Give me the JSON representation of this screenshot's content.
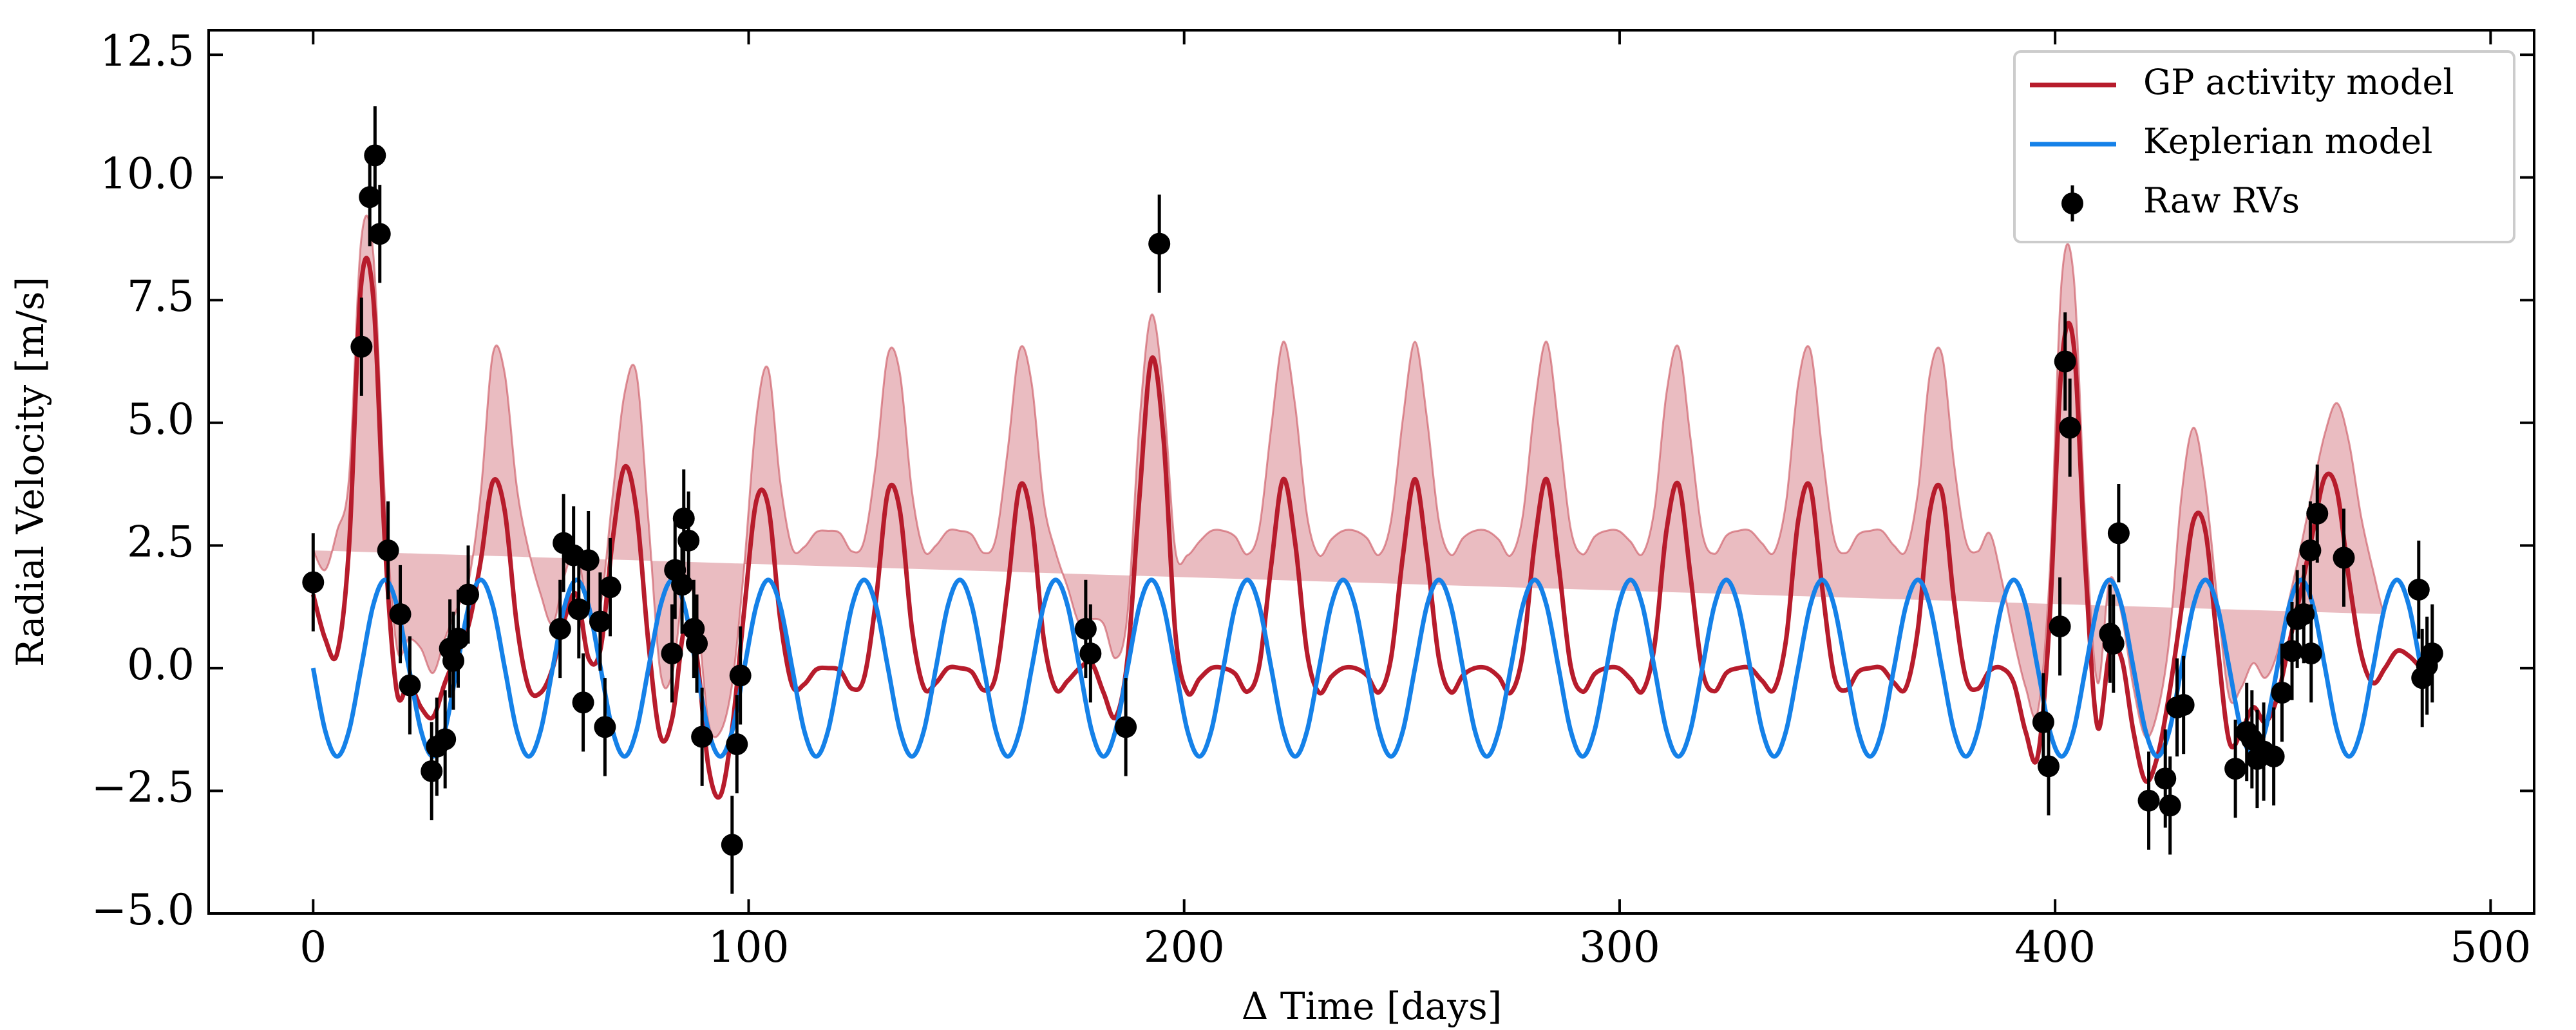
{
  "chart_data": {
    "type": "line",
    "xlabel": "Δ Time [days]",
    "ylabel": "Radial Velocity [m/s]",
    "xlim": [
      -24,
      510
    ],
    "ylim": [
      -5,
      13
    ],
    "xticks": [
      0,
      100,
      200,
      300,
      400,
      500
    ],
    "yticks": [
      {
        "value": -5,
        "label": "−5.0"
      },
      {
        "value": -2.5,
        "label": "−2.5"
      },
      {
        "value": 0,
        "label": "0.0"
      },
      2.5,
      {
        "value": 5,
        "label": "5.0"
      },
      7.5,
      {
        "value": 10,
        "label": "10.0"
      },
      12.5
    ],
    "legend": "upper right",
    "x": [
      0,
      2.75,
      5.5,
      8.25,
      11,
      13.75,
      16.5,
      19.25,
      22,
      24.75,
      27.5,
      30.25,
      33,
      35.75,
      38.5,
      41.25,
      44,
      46.75,
      49.5,
      52.25,
      55,
      57.75,
      60.5,
      63.25,
      66,
      68.75,
      71.5,
      74.25,
      77,
      79.75,
      82.5,
      85.25,
      88,
      90.75,
      93.5,
      96.25,
      99,
      101.75,
      104.5,
      107.25,
      110,
      112.75,
      115.5,
      118.25,
      121,
      123.75,
      126.5,
      129.25,
      132,
      134.75,
      137.5,
      140.25,
      143,
      145.75,
      148.5,
      151.25,
      154,
      156.75,
      159.5,
      162.25,
      165,
      167.75,
      170.5,
      173.25,
      176,
      178.75,
      181.5,
      184.25,
      187,
      189.75,
      192.5,
      195.25,
      198,
      200.75,
      203.5,
      206.25,
      209,
      211.75,
      214.5,
      217.25,
      220,
      222.75,
      225.5,
      228.25,
      231,
      233.75,
      236.5,
      239.25,
      242,
      244.75,
      247.5,
      250.25,
      253,
      255.75,
      258.5,
      261.25,
      264,
      266.75,
      269.5,
      272.25,
      275,
      277.75,
      280.5,
      283.25,
      286,
      288.75,
      291.5,
      294.25,
      297,
      299.75,
      302.5,
      305.25,
      308,
      310.75,
      313.5,
      316.25,
      319,
      321.75,
      324.5,
      327.25,
      330,
      332.75,
      335.5,
      338.25,
      341,
      343.75,
      346.5,
      349.25,
      352,
      354.75,
      357.5,
      360.25,
      363,
      365.75,
      368.5,
      371.25,
      374,
      376.75,
      379.5,
      382.25,
      385,
      387.75,
      390.5,
      393.25,
      396,
      398.75,
      401.5,
      404.25,
      407,
      409.75,
      412.5,
      415.25,
      418,
      420.75,
      423.5,
      426.25,
      429,
      431.75,
      434.5,
      437.25,
      440,
      442.75,
      445.5,
      448.25,
      451,
      453.75,
      456.5,
      459.25,
      462,
      464.75,
      467.5,
      470.25,
      473,
      475.75,
      478.5,
      481.25,
      484
    ],
    "series": [
      {
        "name": "GP activity model",
        "type": "line",
        "color": "#b71c2c",
        "band_color": "#c9505c",
        "values": [
          1.5,
          0.6,
          0.3,
          2.5,
          7.8,
          7.6,
          2.5,
          -0.5,
          -0.3,
          -0.8,
          -1.0,
          -0.3,
          0.3,
          0.9,
          2.2,
          3.8,
          3.2,
          0.9,
          -0.4,
          -0.5,
          0.0,
          1.0,
          1.5,
          0.2,
          0.4,
          2.6,
          4.1,
          3.2,
          0.5,
          -1.4,
          -1.0,
          0.8,
          0.3,
          -2.0,
          -2.6,
          -1.2,
          1.2,
          3.4,
          3.3,
          1.0,
          -0.35,
          -0.33,
          -0.03,
          0.0,
          -0.05,
          -0.42,
          -0.2,
          1.4,
          3.6,
          3.2,
          0.8,
          -0.4,
          -0.3,
          0.0,
          0.0,
          -0.08,
          -0.45,
          -0.15,
          1.65,
          3.7,
          3.0,
          0.6,
          -0.43,
          -0.26,
          0.0,
          0.1,
          -0.5,
          -1.0,
          0.2,
          3.5,
          6.3,
          4.7,
          0.7,
          -0.5,
          -0.22,
          0.0,
          0.0,
          -0.12,
          -0.48,
          0.05,
          2.1,
          3.85,
          2.55,
          0.3,
          -0.5,
          -0.18,
          0.0,
          0.0,
          -0.15,
          -0.49,
          0.2,
          2.3,
          3.85,
          2.3,
          0.2,
          -0.49,
          -0.15,
          0.0,
          0.0,
          -0.18,
          -0.5,
          0.3,
          2.55,
          3.85,
          2.1,
          0.05,
          -0.48,
          -0.12,
          0.0,
          0.0,
          -0.22,
          -0.47,
          0.45,
          2.8,
          3.75,
          1.9,
          -0.05,
          -0.47,
          -0.1,
          0.0,
          0.0,
          -0.26,
          -0.43,
          0.6,
          3.0,
          3.7,
          1.65,
          -0.15,
          -0.45,
          -0.08,
          0.0,
          0.0,
          -0.3,
          -0.4,
          0.8,
          3.2,
          3.6,
          1.4,
          -0.2,
          -0.42,
          -0.05,
          0.0,
          -0.3,
          -1.3,
          -1.8,
          1.0,
          6.2,
          6.6,
          2.0,
          -1.2,
          0.3,
          0.2,
          -1.3,
          -2.3,
          -1.8,
          -0.5,
          1.2,
          3.0,
          2.8,
          0.5,
          -1.5,
          -1.3,
          -0.8,
          -1.1,
          -0.6,
          0.5,
          1.6,
          2.8,
          3.9,
          3.6,
          1.8,
          0.3,
          -0.3,
          0.0,
          0.35,
          0.25,
          0.0
        ],
        "band": [
          0.9,
          1.4,
          2.5,
          1.4,
          0.9,
          0.9,
          0.9,
          0.9,
          0.9,
          1.2,
          0.9,
          0.9,
          0.9,
          0.9,
          1.4,
          2.6,
          2.8,
          2.8,
          2.8,
          2.0,
          0.9,
          0.9,
          0.9,
          0.9,
          0.9,
          0.9,
          1.5,
          2.8,
          2.5,
          1.3,
          0.9,
          0.9,
          0.9,
          0.9,
          1.3,
          0.9,
          0.9,
          1.7,
          2.8,
          2.8,
          2.8,
          2.8,
          2.8,
          2.8,
          2.8,
          2.8,
          2.8,
          2.8,
          2.8,
          2.8,
          2.8,
          2.8,
          2.8,
          2.8,
          2.8,
          2.8,
          2.8,
          2.8,
          2.8,
          2.8,
          2.8,
          2.8,
          2.8,
          1.9,
          0.9,
          0.9,
          1.4,
          1.2,
          0.9,
          1.5,
          0.9,
          0.9,
          1.7,
          2.8,
          2.8,
          2.8,
          2.8,
          2.8,
          2.8,
          2.8,
          2.8,
          2.8,
          2.8,
          2.8,
          2.8,
          2.8,
          2.8,
          2.8,
          2.8,
          2.8,
          2.8,
          2.8,
          2.8,
          2.8,
          2.8,
          2.8,
          2.8,
          2.8,
          2.8,
          2.8,
          2.8,
          2.8,
          2.8,
          2.8,
          2.8,
          2.8,
          2.8,
          2.8,
          2.8,
          2.8,
          2.8,
          2.8,
          2.8,
          2.8,
          2.8,
          2.8,
          2.8,
          2.8,
          2.8,
          2.8,
          2.8,
          2.8,
          2.8,
          2.8,
          2.8,
          2.8,
          2.8,
          2.8,
          2.8,
          2.8,
          2.8,
          2.8,
          2.8,
          2.8,
          2.8,
          2.8,
          2.8,
          2.8,
          2.8,
          2.8,
          2.8,
          1.8,
          0.9,
          0.9,
          0.9,
          0.9,
          1.7,
          1.4,
          0.9,
          0.9,
          1.5,
          0.9,
          0.9,
          0.9,
          0.9,
          1.1,
          2.3,
          1.9,
          0.9,
          0.9,
          0.9,
          0.9,
          0.9,
          0.9,
          0.9,
          0.9,
          0.9,
          0.9,
          0.9,
          1.8,
          2.8,
          2.8,
          2.3,
          1.1,
          0.9
        ]
      },
      {
        "name": "Keplerian model",
        "type": "line",
        "color": "#1581e8",
        "values": [
          0,
          -1.27,
          -1.8,
          -1.27,
          0,
          1.27,
          1.8,
          1.27,
          0,
          -1.27,
          -1.8,
          -1.27,
          0,
          1.27,
          1.8,
          1.27,
          0,
          -1.27,
          -1.8,
          -1.27,
          0,
          1.27,
          1.8,
          1.27,
          0,
          -1.27,
          -1.8,
          -1.27,
          0,
          1.27,
          1.8,
          1.27,
          0,
          -1.27,
          -1.8,
          -1.27,
          0,
          1.27,
          1.8,
          1.27,
          0,
          -1.27,
          -1.8,
          -1.27,
          0,
          1.27,
          1.8,
          1.27,
          0,
          -1.27,
          -1.8,
          -1.27,
          0,
          1.27,
          1.8,
          1.27,
          0,
          -1.27,
          -1.8,
          -1.27,
          0,
          1.27,
          1.8,
          1.27,
          0,
          -1.27,
          -1.8,
          -1.27,
          0,
          1.27,
          1.8,
          1.27,
          0,
          -1.27,
          -1.8,
          -1.27,
          0,
          1.27,
          1.8,
          1.27,
          0,
          -1.27,
          -1.8,
          -1.27,
          0,
          1.27,
          1.8,
          1.27,
          0,
          -1.27,
          -1.8,
          -1.27,
          0,
          1.27,
          1.8,
          1.27,
          0,
          -1.27,
          -1.8,
          -1.27,
          0,
          1.27,
          1.8,
          1.27,
          0,
          -1.27,
          -1.8,
          -1.27,
          0,
          1.27,
          1.8,
          1.27,
          0,
          -1.27,
          -1.8,
          -1.27,
          0,
          1.27,
          1.8,
          1.27,
          0,
          -1.27,
          -1.8,
          -1.27,
          0,
          1.27,
          1.8,
          1.27,
          0,
          -1.27,
          -1.8,
          -1.27,
          0,
          1.27,
          1.8,
          1.27,
          0,
          -1.27,
          -1.8,
          -1.27,
          0,
          1.27,
          1.8,
          1.27,
          0,
          -1.27,
          -1.8,
          -1.27,
          0,
          1.27,
          1.8,
          1.27,
          0,
          -1.27,
          -1.8,
          -1.27,
          0,
          1.27,
          1.8,
          1.27,
          0,
          -1.27,
          -1.8,
          -1.27,
          0,
          1.27,
          1.8,
          1.27,
          0,
          -1.27,
          -1.8,
          -1.27,
          0,
          1.27,
          1.8,
          1.27,
          0
        ]
      },
      {
        "name": "Raw RVs",
        "type": "scatter",
        "color": "#000000",
        "x": [
          0,
          11.1,
          13,
          14.2,
          15.3,
          17.2,
          20,
          22.2,
          27.2,
          28.4,
          30.3,
          31.4,
          32.2,
          33.3,
          35.6,
          56.7,
          57.5,
          59.8,
          61,
          62,
          63.2,
          65.9,
          67,
          68.2,
          82.4,
          83.1,
          84.7,
          85.1,
          86.2,
          87.4,
          88.1,
          89.3,
          96.2,
          97.3,
          98.1,
          177.4,
          178.5,
          186.6,
          194.3,
          397.3,
          398.5,
          401.1,
          402.3,
          403.4,
          412.6,
          413.4,
          414.6,
          421.5,
          425.3,
          426.4,
          428,
          429.5,
          441.4,
          444,
          445.2,
          446.4,
          447.9,
          450.2,
          452.1,
          454.4,
          455.6,
          457.1,
          458.6,
          460.2,
          458.8,
          466.3,
          483.5,
          484.3,
          485.4,
          486.6
        ],
        "values": [
          1.75,
          6.55,
          9.6,
          10.45,
          8.85,
          2.4,
          1.1,
          -0.35,
          -2.1,
          -1.6,
          -1.45,
          0.4,
          0.15,
          0.6,
          1.5,
          0.8,
          2.55,
          2.3,
          1.2,
          -0.7,
          2.2,
          0.95,
          -1.2,
          1.65,
          0.3,
          2.0,
          1.7,
          3.05,
          2.6,
          0.8,
          0.5,
          -1.4,
          -3.6,
          -1.55,
          -0.15,
          0.8,
          0.3,
          -1.2,
          8.65,
          -1.1,
          -2.0,
          0.85,
          6.25,
          4.9,
          0.7,
          0.5,
          2.75,
          -2.7,
          -2.25,
          -2.8,
          -0.8,
          -0.75,
          -2.05,
          -1.3,
          -1.45,
          -1.85,
          -1.7,
          -1.8,
          -0.5,
          0.35,
          1.0,
          1.1,
          2.4,
          3.15,
          0.3,
          2.25,
          1.6,
          -0.2,
          0.05,
          0.3
        ],
        "errors": [
          1,
          1,
          1,
          1,
          1,
          1,
          1,
          1,
          1,
          1,
          1,
          1,
          1,
          1,
          1,
          1,
          1,
          1,
          1,
          1,
          1,
          1,
          1,
          1,
          1,
          1,
          1,
          1,
          1,
          1,
          1,
          1,
          1,
          1,
          1,
          1,
          1,
          1,
          1,
          1,
          1,
          1,
          1,
          1,
          1,
          1,
          1,
          1,
          1,
          1,
          1,
          1,
          1,
          1,
          1,
          1,
          1,
          1,
          1,
          1,
          1,
          1,
          1,
          1,
          1,
          1,
          1,
          1,
          1,
          1
        ]
      }
    ]
  }
}
